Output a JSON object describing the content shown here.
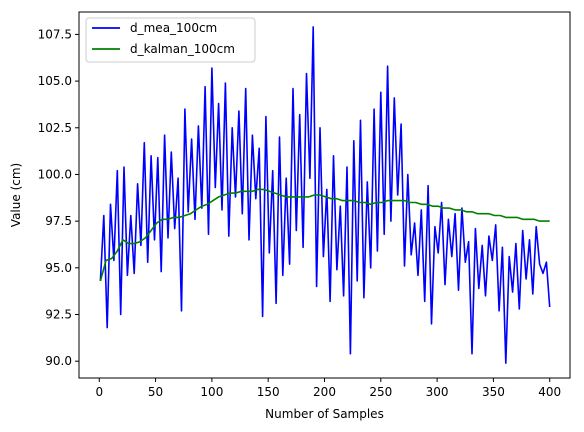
{
  "chart_data": {
    "type": "line",
    "title": "",
    "xlabel": "Number of Samples",
    "ylabel": "Value (cm)",
    "xlim": [
      -18,
      418
    ],
    "ylim": [
      89.1,
      108.7
    ],
    "xticks": [
      0,
      50,
      100,
      150,
      200,
      250,
      300,
      350,
      400
    ],
    "xtick_labels": [
      "0",
      "50",
      "100",
      "150",
      "200",
      "250",
      "300",
      "350",
      "400"
    ],
    "yticks": [
      90.0,
      92.5,
      95.0,
      97.5,
      100.0,
      102.5,
      105.0,
      107.5
    ],
    "ytick_labels": [
      "90.0",
      "92.5",
      "95.0",
      "97.5",
      "100.0",
      "102.5",
      "105.0",
      "107.5"
    ],
    "grid": false,
    "legend": "upper-left",
    "series": [
      {
        "name": "d_mea_100cm",
        "color": "#0000ff",
        "x": [
          1,
          4,
          7,
          10,
          13,
          16,
          19,
          22,
          25,
          28,
          31,
          34,
          37,
          40,
          43,
          46,
          49,
          52,
          55,
          58,
          61,
          64,
          67,
          70,
          73,
          76,
          79,
          82,
          85,
          88,
          91,
          94,
          97,
          100,
          103,
          106,
          109,
          112,
          115,
          118,
          121,
          124,
          127,
          130,
          133,
          136,
          139,
          142,
          145,
          148,
          151,
          154,
          157,
          160,
          163,
          166,
          169,
          172,
          175,
          178,
          181,
          184,
          187,
          190,
          193,
          196,
          199,
          202,
          205,
          208,
          211,
          214,
          217,
          220,
          223,
          226,
          229,
          232,
          235,
          238,
          241,
          244,
          247,
          250,
          253,
          256,
          259,
          262,
          265,
          268,
          271,
          274,
          277,
          280,
          283,
          286,
          289,
          292,
          295,
          298,
          301,
          304,
          307,
          310,
          313,
          316,
          319,
          322,
          325,
          328,
          331,
          334,
          337,
          340,
          343,
          346,
          349,
          352,
          355,
          358,
          361,
          364,
          367,
          370,
          373,
          376,
          379,
          382,
          385,
          388,
          391,
          394,
          397,
          400
        ],
        "y": [
          94.3,
          97.8,
          91.8,
          98.4,
          95.4,
          100.2,
          92.5,
          100.4,
          94.6,
          97.8,
          94.7,
          99.5,
          96.2,
          101.7,
          95.3,
          101.0,
          96.5,
          100.9,
          94.8,
          102.1,
          96.6,
          101.2,
          97.1,
          99.8,
          92.7,
          103.5,
          98.0,
          101.9,
          97.6,
          102.6,
          98.2,
          104.7,
          96.8,
          105.7,
          99.3,
          103.8,
          98.1,
          104.9,
          96.7,
          102.5,
          98.8,
          103.4,
          97.9,
          104.6,
          96.5,
          102.1,
          98.7,
          101.4,
          92.4,
          103.1,
          95.8,
          100.2,
          93.1,
          102.0,
          94.6,
          99.8,
          95.2,
          104.6,
          97.0,
          103.2,
          96.1,
          105.4,
          99.8,
          107.9,
          94.0,
          102.5,
          95.6,
          99.2,
          93.2,
          101.0,
          94.9,
          98.3,
          93.5,
          100.4,
          90.4,
          101.8,
          94.3,
          102.9,
          93.4,
          99.6,
          95.0,
          103.5,
          95.9,
          104.4,
          96.8,
          105.8,
          97.5,
          104.1,
          98.9,
          102.7,
          95.1,
          100.0,
          95.7,
          97.4,
          94.6,
          98.1,
          93.2,
          99.4,
          92.0,
          97.2,
          95.8,
          98.5,
          94.1,
          97.6,
          95.6,
          97.9,
          93.8,
          98.2,
          95.3,
          96.4,
          90.4,
          97.1,
          93.9,
          96.2,
          93.5,
          96.7,
          95.4,
          97.3,
          92.7,
          96.1,
          89.9,
          95.6,
          93.7,
          96.3,
          92.8,
          97.0,
          94.4,
          96.5,
          93.6,
          97.2,
          95.2,
          94.7,
          95.3,
          92.9
        ]
      },
      {
        "name": "d_kalman_100cm",
        "color": "#008000",
        "x": [
          1,
          6,
          11,
          16,
          21,
          26,
          31,
          36,
          41,
          46,
          51,
          56,
          61,
          66,
          71,
          76,
          81,
          86,
          91,
          96,
          101,
          106,
          111,
          116,
          121,
          126,
          131,
          136,
          141,
          146,
          151,
          156,
          161,
          166,
          171,
          176,
          181,
          186,
          191,
          196,
          201,
          206,
          211,
          216,
          221,
          226,
          231,
          236,
          241,
          246,
          251,
          256,
          261,
          266,
          271,
          276,
          281,
          286,
          291,
          296,
          301,
          306,
          311,
          316,
          321,
          326,
          331,
          336,
          341,
          346,
          351,
          356,
          361,
          366,
          371,
          376,
          381,
          386,
          391,
          396,
          400
        ],
        "y": [
          94.3,
          95.4,
          95.5,
          95.9,
          96.5,
          96.3,
          96.3,
          96.4,
          96.6,
          97.0,
          97.4,
          97.6,
          97.6,
          97.7,
          97.7,
          97.8,
          97.9,
          98.1,
          98.3,
          98.4,
          98.6,
          98.8,
          98.9,
          99.0,
          99.0,
          99.1,
          99.1,
          99.1,
          99.2,
          99.2,
          99.1,
          99.0,
          98.9,
          98.8,
          98.8,
          98.8,
          98.8,
          98.8,
          98.9,
          98.9,
          98.8,
          98.7,
          98.7,
          98.6,
          98.6,
          98.6,
          98.5,
          98.5,
          98.4,
          98.5,
          98.5,
          98.6,
          98.6,
          98.6,
          98.6,
          98.5,
          98.5,
          98.4,
          98.4,
          98.3,
          98.3,
          98.2,
          98.2,
          98.1,
          98.1,
          98.0,
          98.0,
          97.9,
          97.9,
          97.9,
          97.8,
          97.8,
          97.7,
          97.7,
          97.7,
          97.6,
          97.6,
          97.6,
          97.5,
          97.5,
          97.5
        ]
      }
    ]
  }
}
